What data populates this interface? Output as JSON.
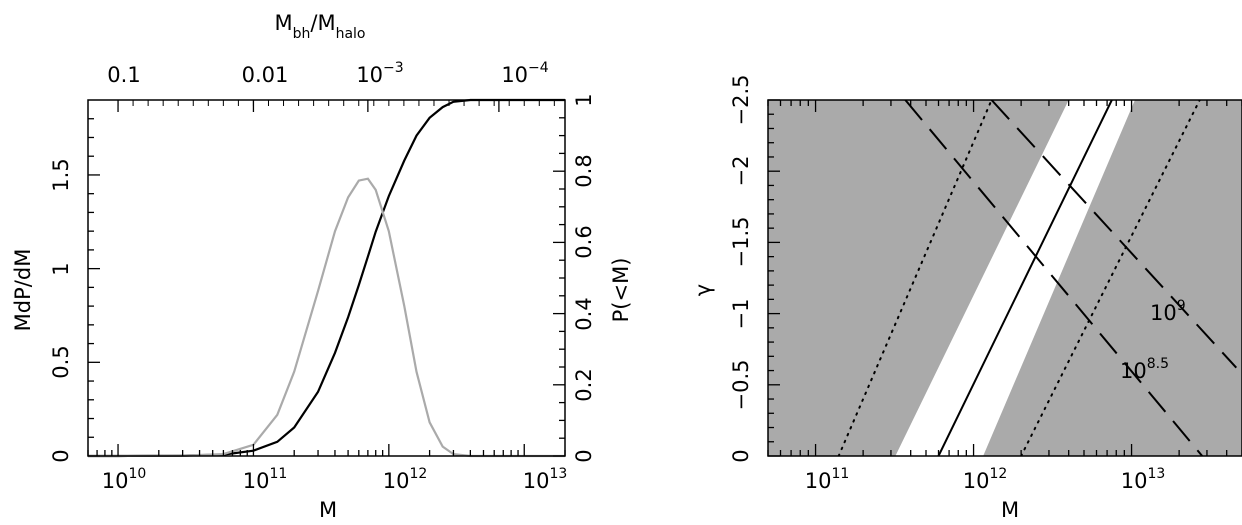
{
  "chart_data": [
    {
      "type": "line",
      "panel": "left",
      "xscale": "log",
      "xlim": [
        6000000000.0,
        20000000000000.0
      ],
      "xlabel": "M",
      "ylabel": "MdP/dM",
      "ylim": [
        0,
        1.9
      ],
      "y2label": "P(<M)",
      "y2lim": [
        0,
        1
      ],
      "top_axis_label": {
        "main": "M",
        "sub1": "bh",
        "mid": "/M",
        "sub2": "halo"
      },
      "x_ticks": [
        {
          "base": "10",
          "exp": "10",
          "value": 10000000000.0
        },
        {
          "base": "10",
          "exp": "11",
          "value": 100000000000.0
        },
        {
          "base": "10",
          "exp": "12",
          "value": 1000000000000.0
        },
        {
          "base": "10",
          "exp": "13",
          "value": 10000000000000.0
        }
      ],
      "y_ticks": [
        "0",
        "0.5",
        "1",
        "1.5"
      ],
      "y2_ticks": [
        "0",
        "0.2",
        "0.4",
        "0.6",
        "0.8",
        "1"
      ],
      "top_ticks": [
        {
          "text": "0.1",
          "exp": "",
          "xvalue": 10000000000.0
        },
        {
          "text": "0.01",
          "exp": "",
          "xvalue": 100000000000.0
        },
        {
          "text": "10",
          "exp": "−3",
          "xvalue": 700000000000.0
        },
        {
          "text": "10",
          "exp": "−4",
          "xvalue": 6500000000000.0
        }
      ],
      "series": [
        {
          "axis": "right",
          "color": "#000000",
          "x": [
            6000000000.0,
            10000000000.0,
            30000000000.0,
            60000000000.0,
            100000000000.0,
            150000000000.0,
            200000000000.0,
            300000000000.0,
            400000000000.0,
            500000000000.0,
            600000000000.0,
            700000000000.0,
            800000000000.0,
            1000000000000.0,
            1300000000000.0,
            1600000000000.0,
            2000000000000.0,
            2500000000000.0,
            3000000000000.0,
            4000000000000.0,
            20000000000000.0
          ],
          "y": [
            0,
            0,
            0.001,
            0.004,
            0.015,
            0.04,
            0.08,
            0.18,
            0.29,
            0.39,
            0.48,
            0.56,
            0.63,
            0.73,
            0.83,
            0.9,
            0.95,
            0.98,
            0.995,
            1.0,
            1.0
          ]
        },
        {
          "axis": "left",
          "color": "#aaaaaa",
          "x": [
            6000000000.0,
            10000000000.0,
            30000000000.0,
            60000000000.0,
            100000000000.0,
            150000000000.0,
            200000000000.0,
            300000000000.0,
            400000000000.0,
            500000000000.0,
            600000000000.0,
            700000000000.0,
            800000000000.0,
            1000000000000.0,
            1300000000000.0,
            1600000000000.0,
            2000000000000.0,
            2500000000000.0,
            3000000000000.0,
            4000000000000.0,
            20000000000000.0
          ],
          "y": [
            0,
            0,
            0.002,
            0.01,
            0.06,
            0.22,
            0.45,
            0.88,
            1.2,
            1.38,
            1.47,
            1.48,
            1.42,
            1.2,
            0.8,
            0.45,
            0.18,
            0.05,
            0.01,
            0,
            0
          ]
        }
      ]
    },
    {
      "type": "area",
      "panel": "right",
      "xscale": "log",
      "xlim": [
        50000000000.0,
        50000000000000.0
      ],
      "xlabel": "M",
      "ylabel": "γ",
      "ylim": [
        0,
        -2.5
      ],
      "x_ticks": [
        {
          "base": "10",
          "exp": "11",
          "value": 100000000000.0
        },
        {
          "base": "10",
          "exp": "12",
          "value": 1000000000000.0
        },
        {
          "base": "10",
          "exp": "13",
          "value": 10000000000000.0
        }
      ],
      "y_ticks": [
        "0",
        "−0.5",
        "−1",
        "−1.5",
        "−2",
        "−2.5"
      ],
      "colors": {
        "excluded": "#aaaaaa",
        "allowed": "#ffffff"
      },
      "bands": {
        "inner_allowed": {
          "bottom": [
            320000000000.0,
            1150000000000.0
          ],
          "top": [
            4000000000000.0,
            10500000000000.0
          ]
        },
        "outer_dotted": {
          "bottom": [
            140000000000.0,
            2000000000000.0
          ],
          "top": [
            1300000000000.0,
            27000000000000.0
          ]
        },
        "best_fit": {
          "bottom": 600000000000.0,
          "top": 7500000000000.0
        }
      },
      "dashed_lines": [
        {
          "label": {
            "base": "10",
            "exp": "9"
          },
          "from": [
            1300000000000.0,
            -2.5
          ],
          "to": [
            46000000000000.0,
            -0.62
          ]
        },
        {
          "label": {
            "base": "10",
            "exp": "8.5"
          },
          "from": [
            370000000000.0,
            -2.5
          ],
          "to": [
            28000000000000.0,
            0
          ]
        }
      ]
    }
  ]
}
